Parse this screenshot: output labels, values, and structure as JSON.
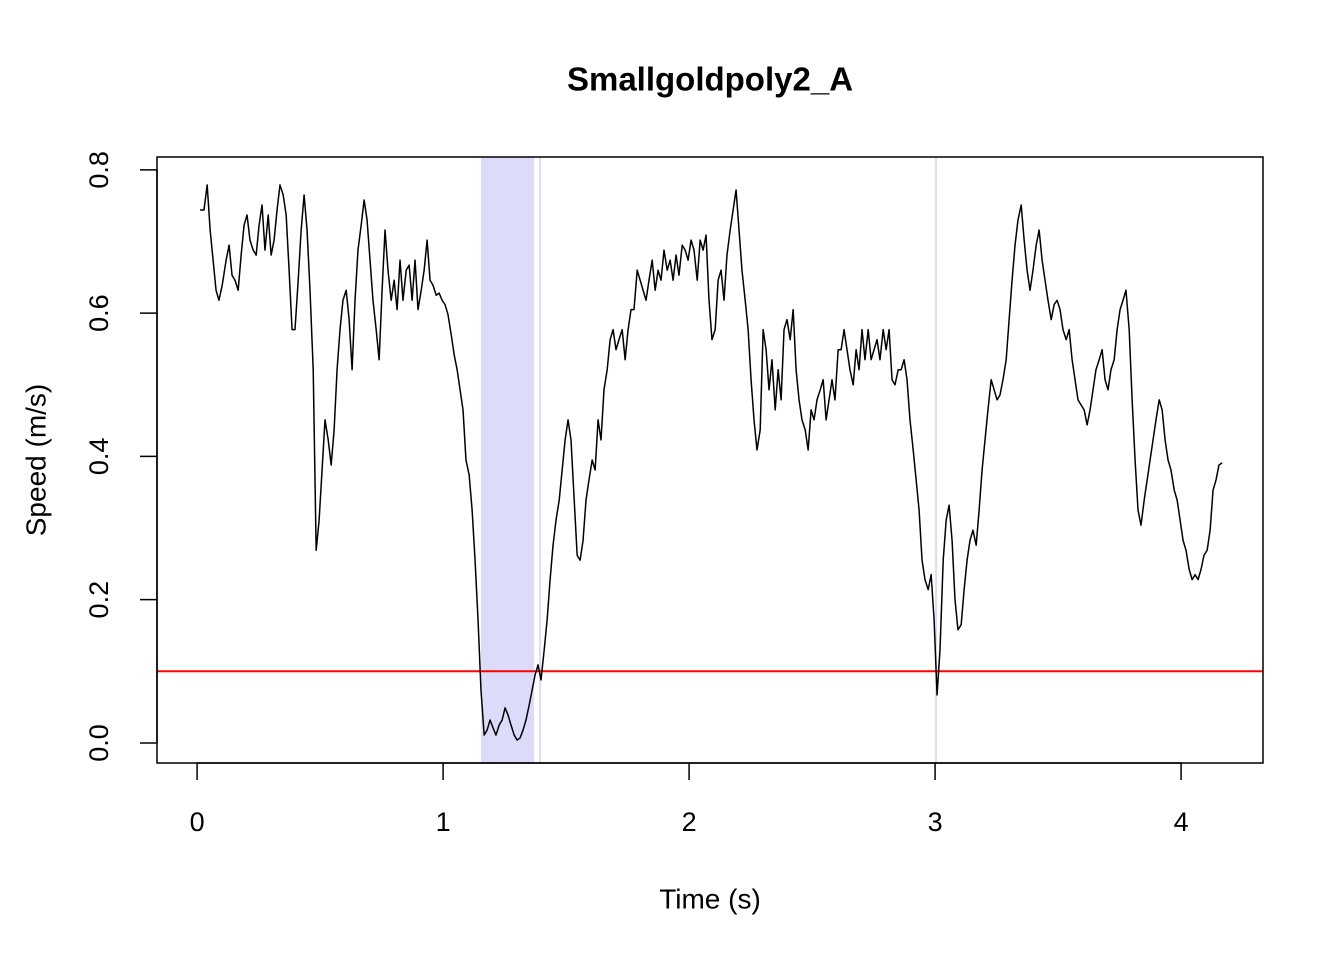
{
  "chart_data": {
    "type": "line",
    "title": "Smallgoldpoly2_A",
    "xlabel": "Time (s)",
    "ylabel": "Speed (m/s)",
    "color": "#000000",
    "threshold": 0.1,
    "threshold_color": "#ff0000",
    "highlight_color": "#dcdcfa",
    "highlight_regions": [
      [
        1.154,
        1.37
      ],
      [
        1.39,
        1.398
      ],
      [
        3.0,
        3.008
      ]
    ],
    "xlim": [
      -0.163,
      4.333
    ],
    "ylim": [
      -0.028,
      0.818
    ],
    "xticks": [
      0,
      1,
      2,
      3,
      4
    ],
    "yticks": [
      {
        "value": 0,
        "label": "0.0"
      },
      0.2,
      0.4,
      0.6,
      0.8
    ],
    "x": [
      0.012,
      0.028,
      0.041,
      0.053,
      0.065,
      0.077,
      0.089,
      0.102,
      0.118,
      0.13,
      0.142,
      0.154,
      0.167,
      0.179,
      0.191,
      0.203,
      0.215,
      0.228,
      0.24,
      0.252,
      0.264,
      0.276,
      0.289,
      0.301,
      0.313,
      0.325,
      0.337,
      0.35,
      0.362,
      0.374,
      0.386,
      0.398,
      0.411,
      0.423,
      0.435,
      0.447,
      0.459,
      0.472,
      0.484,
      0.496,
      0.508,
      0.52,
      0.533,
      0.545,
      0.557,
      0.569,
      0.581,
      0.593,
      0.606,
      0.618,
      0.63,
      0.642,
      0.654,
      0.667,
      0.679,
      0.691,
      0.703,
      0.715,
      0.728,
      0.74,
      0.752,
      0.764,
      0.776,
      0.789,
      0.801,
      0.813,
      0.825,
      0.837,
      0.85,
      0.862,
      0.874,
      0.886,
      0.898,
      0.911,
      0.923,
      0.935,
      0.947,
      0.959,
      0.972,
      0.984,
      0.996,
      1.008,
      1.02,
      1.033,
      1.045,
      1.057,
      1.069,
      1.081,
      1.093,
      1.106,
      1.118,
      1.13,
      1.142,
      1.154,
      1.167,
      1.179,
      1.191,
      1.203,
      1.215,
      1.228,
      1.24,
      1.252,
      1.264,
      1.276,
      1.289,
      1.301,
      1.313,
      1.325,
      1.337,
      1.35,
      1.362,
      1.374,
      1.386,
      1.398,
      1.411,
      1.423,
      1.435,
      1.447,
      1.459,
      1.472,
      1.484,
      1.496,
      1.508,
      1.52,
      1.533,
      1.545,
      1.557,
      1.569,
      1.581,
      1.593,
      1.606,
      1.618,
      1.63,
      1.642,
      1.654,
      1.667,
      1.679,
      1.691,
      1.703,
      1.715,
      1.728,
      1.74,
      1.752,
      1.764,
      1.776,
      1.789,
      1.801,
      1.813,
      1.825,
      1.837,
      1.85,
      1.862,
      1.874,
      1.886,
      1.898,
      1.911,
      1.923,
      1.935,
      1.947,
      1.959,
      1.972,
      1.984,
      1.996,
      2.008,
      2.02,
      2.033,
      2.045,
      2.057,
      2.069,
      2.081,
      2.093,
      2.106,
      2.118,
      2.13,
      2.142,
      2.154,
      2.167,
      2.179,
      2.191,
      2.203,
      2.215,
      2.228,
      2.24,
      2.252,
      2.264,
      2.276,
      2.289,
      2.301,
      2.313,
      2.325,
      2.337,
      2.35,
      2.362,
      2.374,
      2.386,
      2.398,
      2.411,
      2.423,
      2.435,
      2.447,
      2.459,
      2.472,
      2.484,
      2.496,
      2.508,
      2.52,
      2.533,
      2.545,
      2.557,
      2.569,
      2.581,
      2.593,
      2.606,
      2.618,
      2.63,
      2.642,
      2.654,
      2.667,
      2.679,
      2.691,
      2.703,
      2.715,
      2.728,
      2.74,
      2.752,
      2.764,
      2.776,
      2.789,
      2.801,
      2.813,
      2.825,
      2.837,
      2.85,
      2.862,
      2.874,
      2.886,
      2.898,
      2.911,
      2.923,
      2.935,
      2.947,
      2.959,
      2.972,
      2.984,
      2.996,
      3.008,
      3.02,
      3.033,
      3.045,
      3.057,
      3.069,
      3.081,
      3.093,
      3.106,
      3.118,
      3.13,
      3.142,
      3.154,
      3.167,
      3.179,
      3.191,
      3.203,
      3.215,
      3.228,
      3.24,
      3.252,
      3.264,
      3.276,
      3.289,
      3.301,
      3.313,
      3.325,
      3.337,
      3.35,
      3.362,
      3.374,
      3.386,
      3.398,
      3.411,
      3.423,
      3.435,
      3.447,
      3.459,
      3.472,
      3.484,
      3.496,
      3.508,
      3.52,
      3.533,
      3.545,
      3.557,
      3.569,
      3.581,
      3.593,
      3.606,
      3.618,
      3.63,
      3.642,
      3.654,
      3.667,
      3.679,
      3.691,
      3.703,
      3.715,
      3.728,
      3.74,
      3.752,
      3.764,
      3.776,
      3.789,
      3.801,
      3.813,
      3.825,
      3.837,
      3.85,
      3.862,
      3.874,
      3.886,
      3.898,
      3.911,
      3.923,
      3.935,
      3.947,
      3.959,
      3.972,
      3.984,
      3.996,
      4.008,
      4.02,
      4.033,
      4.045,
      4.057,
      4.069,
      4.081,
      4.093,
      4.106,
      4.118,
      4.13,
      4.142,
      4.154,
      4.167
    ],
    "values": [
      0.744,
      0.744,
      0.779,
      0.716,
      0.674,
      0.632,
      0.618,
      0.639,
      0.674,
      0.695,
      0.653,
      0.646,
      0.632,
      0.681,
      0.723,
      0.737,
      0.702,
      0.688,
      0.681,
      0.723,
      0.751,
      0.688,
      0.737,
      0.681,
      0.702,
      0.744,
      0.779,
      0.765,
      0.737,
      0.66,
      0.577,
      0.577,
      0.646,
      0.716,
      0.765,
      0.716,
      0.632,
      0.521,
      0.269,
      0.311,
      0.381,
      0.451,
      0.423,
      0.388,
      0.437,
      0.521,
      0.577,
      0.618,
      0.632,
      0.591,
      0.521,
      0.618,
      0.688,
      0.723,
      0.758,
      0.73,
      0.674,
      0.618,
      0.577,
      0.535,
      0.632,
      0.716,
      0.66,
      0.618,
      0.646,
      0.605,
      0.674,
      0.618,
      0.66,
      0.667,
      0.618,
      0.674,
      0.605,
      0.632,
      0.66,
      0.702,
      0.646,
      0.639,
      0.625,
      0.628,
      0.618,
      0.612,
      0.598,
      0.57,
      0.542,
      0.521,
      0.493,
      0.465,
      0.395,
      0.374,
      0.325,
      0.255,
      0.172,
      0.074,
      0.011,
      0.018,
      0.032,
      0.021,
      0.011,
      0.025,
      0.032,
      0.049,
      0.039,
      0.025,
      0.011,
      0.004,
      0.007,
      0.018,
      0.032,
      0.053,
      0.074,
      0.095,
      0.109,
      0.088,
      0.13,
      0.172,
      0.228,
      0.276,
      0.311,
      0.339,
      0.381,
      0.423,
      0.451,
      0.423,
      0.339,
      0.262,
      0.255,
      0.283,
      0.339,
      0.367,
      0.395,
      0.381,
      0.451,
      0.423,
      0.493,
      0.521,
      0.563,
      0.577,
      0.549,
      0.563,
      0.577,
      0.535,
      0.577,
      0.605,
      0.605,
      0.66,
      0.646,
      0.632,
      0.618,
      0.646,
      0.674,
      0.632,
      0.66,
      0.646,
      0.688,
      0.66,
      0.674,
      0.646,
      0.681,
      0.653,
      0.695,
      0.688,
      0.674,
      0.702,
      0.688,
      0.646,
      0.702,
      0.688,
      0.709,
      0.618,
      0.563,
      0.577,
      0.646,
      0.66,
      0.618,
      0.681,
      0.716,
      0.744,
      0.772,
      0.716,
      0.66,
      0.618,
      0.577,
      0.507,
      0.451,
      0.409,
      0.437,
      0.577,
      0.549,
      0.493,
      0.535,
      0.465,
      0.521,
      0.479,
      0.577,
      0.591,
      0.563,
      0.605,
      0.521,
      0.479,
      0.451,
      0.437,
      0.409,
      0.465,
      0.451,
      0.479,
      0.493,
      0.507,
      0.451,
      0.479,
      0.507,
      0.479,
      0.549,
      0.549,
      0.577,
      0.549,
      0.521,
      0.5,
      0.549,
      0.521,
      0.577,
      0.535,
      0.577,
      0.535,
      0.549,
      0.563,
      0.535,
      0.577,
      0.549,
      0.577,
      0.507,
      0.5,
      0.521,
      0.521,
      0.535,
      0.507,
      0.451,
      0.409,
      0.367,
      0.325,
      0.255,
      0.228,
      0.214,
      0.235,
      0.172,
      0.067,
      0.13,
      0.255,
      0.311,
      0.332,
      0.283,
      0.2,
      0.158,
      0.165,
      0.214,
      0.255,
      0.283,
      0.297,
      0.276,
      0.325,
      0.381,
      0.423,
      0.465,
      0.507,
      0.493,
      0.479,
      0.486,
      0.507,
      0.535,
      0.591,
      0.646,
      0.695,
      0.73,
      0.751,
      0.702,
      0.66,
      0.632,
      0.66,
      0.695,
      0.716,
      0.674,
      0.646,
      0.618,
      0.591,
      0.612,
      0.618,
      0.605,
      0.577,
      0.563,
      0.577,
      0.535,
      0.507,
      0.479,
      0.472,
      0.465,
      0.444,
      0.465,
      0.493,
      0.521,
      0.535,
      0.549,
      0.507,
      0.493,
      0.521,
      0.535,
      0.577,
      0.605,
      0.618,
      0.632,
      0.577,
      0.479,
      0.395,
      0.325,
      0.304,
      0.339,
      0.367,
      0.395,
      0.423,
      0.451,
      0.479,
      0.465,
      0.423,
      0.395,
      0.381,
      0.353,
      0.339,
      0.311,
      0.283,
      0.269,
      0.242,
      0.228,
      0.235,
      0.228,
      0.242,
      0.262,
      0.269,
      0.297,
      0.353,
      0.367,
      0.388,
      0.391
    ]
  }
}
